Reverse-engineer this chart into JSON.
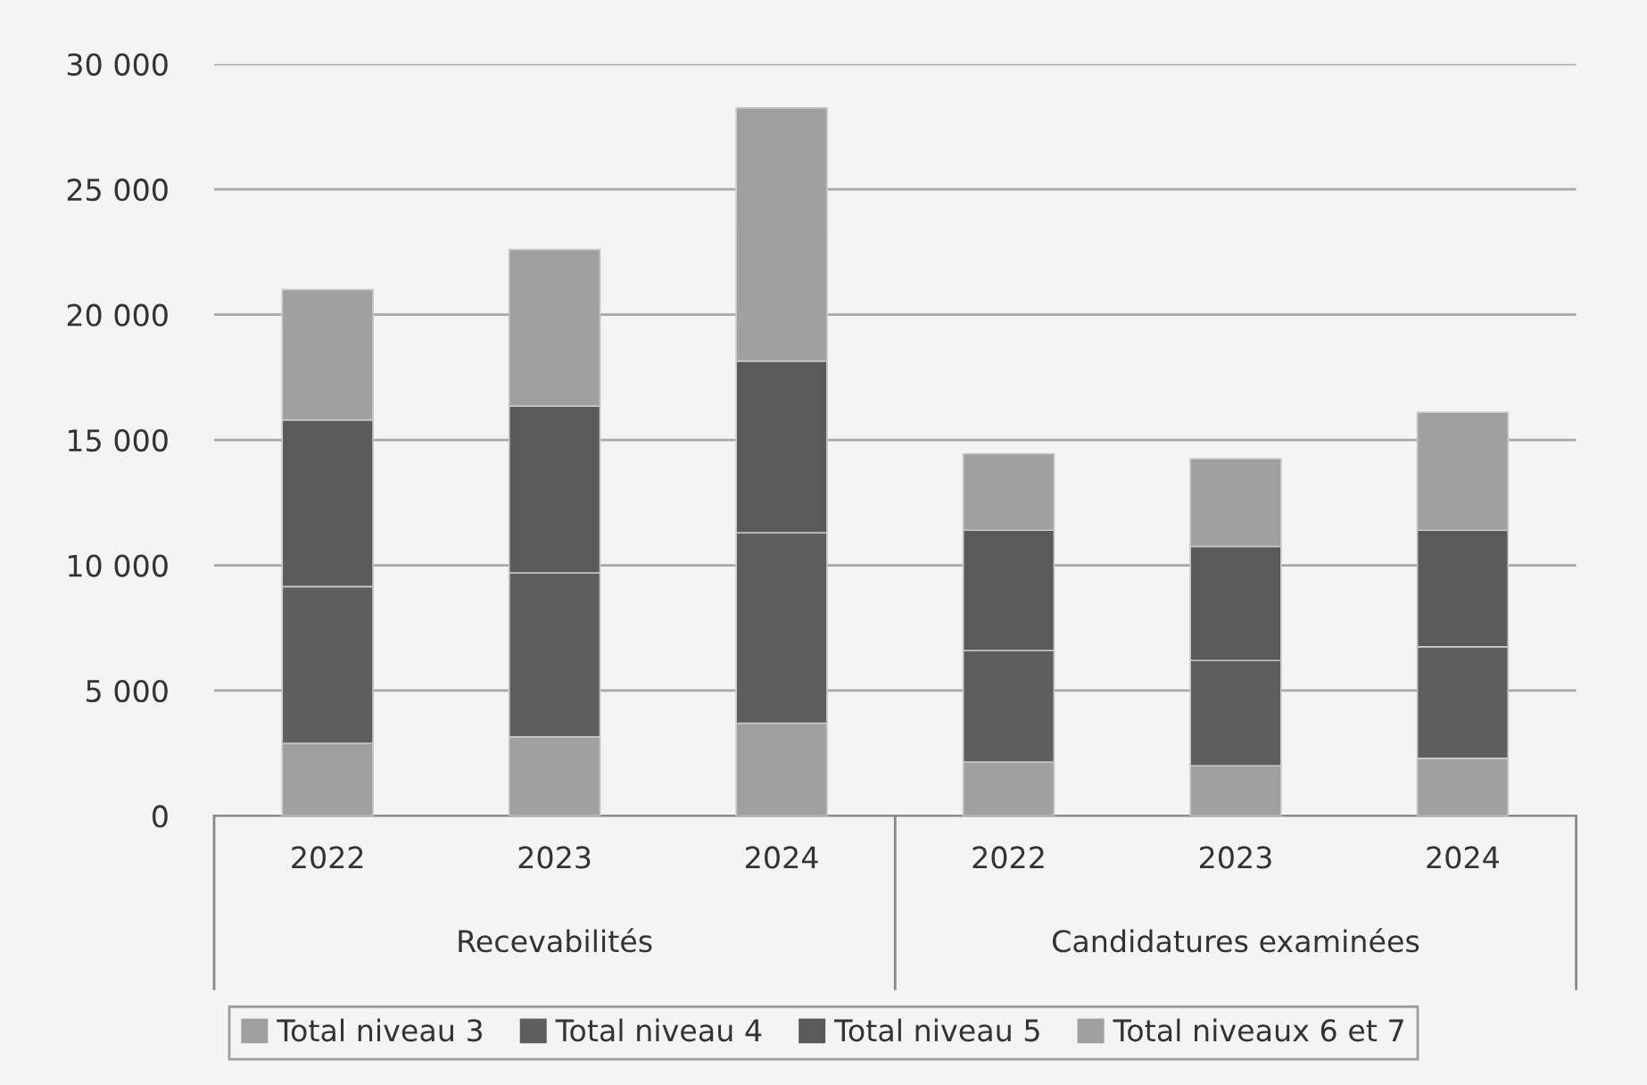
{
  "chart_data": {
    "type": "bar",
    "stacked": true,
    "categories": [
      "2022",
      "2023",
      "2024",
      "2022",
      "2023",
      "2024"
    ],
    "series": [
      {
        "name": "Total niveau 3",
        "color": "#a0a0a0",
        "values": [
          2900,
          3150,
          3700,
          2150,
          2000,
          2300
        ]
      },
      {
        "name": "Total niveau 4",
        "color": "#5e5e5e",
        "values": [
          6250,
          6550,
          7600,
          4450,
          4200,
          4450
        ]
      },
      {
        "name": "Total niveau 5",
        "color": "#5a5a5a",
        "values": [
          6650,
          6650,
          6850,
          4800,
          4550,
          4650
        ]
      },
      {
        "name": "Total niveaux 6 et 7",
        "color": "#a0a0a0",
        "values": [
          5200,
          6250,
          10100,
          3050,
          3500,
          4700
        ]
      }
    ],
    "ylim": [
      0,
      30000
    ],
    "yticks": [
      0,
      {
        "value": 5000,
        "label": "5 000"
      },
      {
        "value": 10000,
        "label": "10 000"
      },
      {
        "value": 15000,
        "label": "15 000"
      },
      {
        "value": 20000,
        "label": "20 000"
      },
      {
        "value": 25000,
        "label": "25 000"
      },
      {
        "value": 30000,
        "label": "30 000"
      }
    ],
    "grid": "y",
    "legend": "bottom",
    "annotations": [
      "Recevabilités",
      "Candidatures examinées"
    ]
  }
}
